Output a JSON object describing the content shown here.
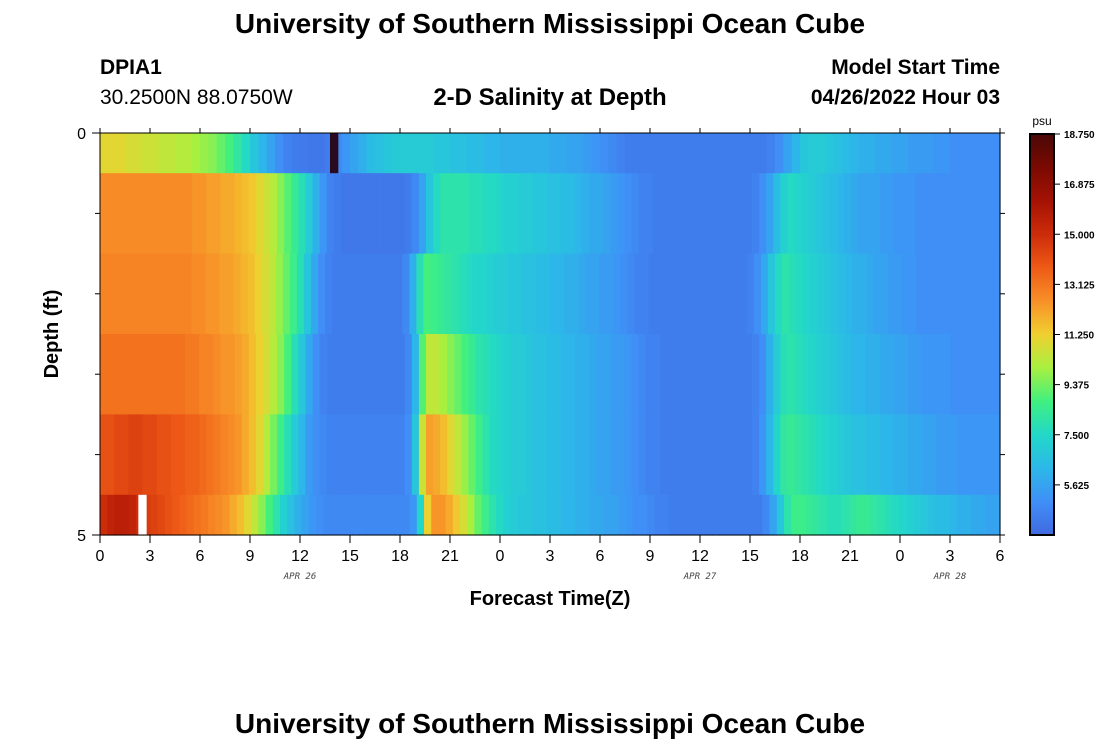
{
  "header": {
    "title": "University of Southern Mississippi Ocean Cube",
    "station_id": "DPIA1",
    "station_coords": "30.2500N  88.0750W",
    "subtitle": "2-D Salinity at Depth",
    "model_label": "Model Start Time",
    "model_time": "04/26/2022 Hour 03"
  },
  "footer": {
    "title": "University of Southern Mississippi Ocean Cube"
  },
  "chart_data": {
    "type": "heatmap",
    "title": "2-D Salinity at Depth",
    "xlabel": "Forecast Time(Z)",
    "ylabel": "Depth (ft)",
    "x_range_hours": [
      0,
      54
    ],
    "y_range_ft": [
      0,
      5
    ],
    "y_ticks": [
      "0",
      "5"
    ],
    "x_tick_labels": [
      "0",
      "3",
      "6",
      "9",
      "12",
      "15",
      "18",
      "21",
      "0",
      "3",
      "6",
      "9",
      "12",
      "15",
      "18",
      "21",
      "0",
      "3",
      "6"
    ],
    "date_labels": [
      {
        "label": "APR 26",
        "hour": 12
      },
      {
        "label": "APR 27",
        "hour": 36
      },
      {
        "label": "APR 28",
        "hour": 51
      }
    ],
    "colorbar": {
      "unit": "psu",
      "ticks": [
        "18.750",
        "16.875",
        "15.000",
        "13.125",
        "11.250",
        "9.375",
        "7.500",
        "5.625"
      ],
      "min": 3.75,
      "max": 18.75,
      "colors": [
        "#4169e1",
        "#3f8ff7",
        "#2cb8e8",
        "#22d8c8",
        "#40f080",
        "#a8f040",
        "#f0d030",
        "#f89028",
        "#ee5a16",
        "#cc2c0a",
        "#a41204",
        "#7a0a02",
        "#4a0806"
      ]
    },
    "layers": [
      {
        "depth_top": 0,
        "depth_bottom": 0.5,
        "values": [
          11.0,
          11.0,
          11.0,
          10.8,
          10.8,
          10.6,
          10.6,
          10.4,
          10.4,
          10.2,
          10.2,
          10.0,
          9.8,
          9.6,
          9.2,
          8.8,
          8.2,
          7.6,
          6.8,
          6.2,
          5.6,
          5.0,
          4.6,
          4.4,
          4.3,
          4.2,
          4.2,
          4.4,
          4.8,
          5.2,
          5.6,
          6.0,
          6.4,
          6.6,
          6.8,
          6.9,
          7.0,
          7.0,
          7.0,
          7.0,
          6.8,
          6.8,
          6.6,
          6.6,
          6.4,
          6.4,
          6.2,
          6.2,
          6.0,
          6.0,
          6.0,
          6.0,
          6.0,
          6.0,
          5.8,
          5.8,
          5.6,
          5.6,
          5.4,
          5.2,
          5.0,
          4.8,
          4.6,
          4.4,
          4.4,
          4.4,
          4.4,
          4.4,
          4.4,
          4.4,
          4.4,
          4.4,
          4.4,
          4.4,
          4.4,
          4.4,
          4.4,
          4.4,
          4.4,
          4.4,
          4.6,
          5.0,
          5.6,
          6.2,
          6.8,
          7.0,
          7.0,
          6.8,
          6.6,
          6.4,
          6.2,
          6.0,
          6.0,
          5.8,
          5.8,
          5.6,
          5.6,
          5.4,
          5.4,
          5.4,
          5.2,
          5.2,
          5.0,
          5.0,
          5.0,
          5.0,
          5.0,
          5.0
        ]
      },
      {
        "depth_top": 0.5,
        "depth_bottom": 1.5,
        "values": [
          12.6,
          12.6,
          12.6,
          12.6,
          12.6,
          12.6,
          12.6,
          12.6,
          12.6,
          12.6,
          12.6,
          12.6,
          12.6,
          12.4,
          12.4,
          12.2,
          12.2,
          12.0,
          12.0,
          11.8,
          11.6,
          11.4,
          11.0,
          10.6,
          10.2,
          9.6,
          9.0,
          8.4,
          7.8,
          7.0,
          6.0,
          5.2,
          4.6,
          4.4,
          4.2,
          4.2,
          4.2,
          4.2,
          4.2,
          4.2,
          4.2,
          4.2,
          4.2,
          4.4,
          4.8,
          5.6,
          6.8,
          7.6,
          8.0,
          8.0,
          8.0,
          8.0,
          7.8,
          7.8,
          7.6,
          7.6,
          7.4,
          7.2,
          7.2,
          7.0,
          7.0,
          6.8,
          6.8,
          6.6,
          6.6,
          6.4,
          6.4,
          6.2,
          6.0,
          5.8,
          5.8,
          5.6,
          5.4,
          5.2,
          5.0,
          4.8,
          4.6,
          4.6,
          4.4,
          4.4,
          4.4,
          4.4,
          4.4,
          4.4,
          4.4,
          4.4,
          4.4,
          4.4,
          4.4,
          4.4,
          4.4,
          4.4,
          4.6,
          5.0,
          5.6,
          6.4,
          7.2,
          7.6,
          7.4,
          7.2,
          7.0,
          6.8,
          6.6,
          6.4,
          6.2,
          6.0,
          5.8,
          5.6,
          5.6,
          5.6,
          5.4,
          5.4,
          5.2,
          5.2,
          5.2,
          5.0,
          5.0,
          5.0,
          5.0,
          5.0,
          5.0,
          5.0,
          5.0,
          5.0,
          5.0,
          5.0,
          5.0
        ]
      },
      {
        "depth_top": 1.5,
        "depth_bottom": 2.5,
        "values": [
          12.8,
          12.8,
          12.8,
          12.8,
          12.8,
          12.8,
          12.8,
          12.8,
          12.8,
          12.8,
          12.8,
          12.8,
          12.8,
          12.6,
          12.6,
          12.4,
          12.4,
          12.2,
          12.2,
          12.0,
          11.8,
          11.6,
          11.2,
          10.8,
          10.4,
          9.8,
          9.2,
          8.6,
          7.8,
          6.8,
          5.8,
          5.0,
          4.6,
          4.4,
          4.4,
          4.4,
          4.4,
          4.4,
          4.4,
          4.4,
          4.4,
          4.4,
          4.4,
          4.8,
          6.0,
          7.8,
          8.8,
          8.6,
          8.4,
          8.2,
          8.0,
          7.8,
          7.6,
          7.4,
          7.4,
          7.2,
          7.0,
          7.0,
          6.8,
          6.8,
          6.6,
          6.6,
          6.4,
          6.4,
          6.2,
          6.2,
          6.0,
          6.0,
          5.8,
          5.6,
          5.6,
          5.4,
          5.4,
          5.2,
          5.0,
          4.8,
          4.6,
          4.6,
          4.4,
          4.4,
          4.4,
          4.4,
          4.4,
          4.4,
          4.4,
          4.4,
          4.4,
          4.4,
          4.4,
          4.4,
          4.4,
          4.4,
          4.6,
          5.0,
          5.8,
          6.8,
          7.6,
          8.0,
          7.8,
          7.6,
          7.4,
          7.2,
          7.0,
          6.8,
          6.6,
          6.4,
          6.2,
          6.0,
          6.0,
          5.8,
          5.6,
          5.6,
          5.4,
          5.4,
          5.2,
          5.2,
          5.0,
          5.0,
          5.0,
          5.0,
          5.0,
          5.0,
          5.0,
          5.0,
          5.0,
          5.0,
          5.0,
          5.0
        ]
      },
      {
        "depth_top": 2.5,
        "depth_bottom": 3.5,
        "values": [
          13.2,
          13.2,
          13.2,
          13.2,
          13.2,
          13.2,
          13.2,
          13.2,
          13.2,
          13.2,
          13.2,
          13.2,
          13.0,
          13.0,
          12.8,
          12.8,
          12.6,
          12.4,
          12.4,
          12.2,
          12.0,
          11.6,
          11.2,
          10.8,
          10.2,
          9.6,
          8.8,
          7.8,
          6.8,
          5.8,
          5.0,
          4.6,
          4.4,
          4.4,
          4.4,
          4.4,
          4.4,
          4.4,
          4.4,
          4.4,
          4.4,
          4.4,
          4.4,
          4.8,
          6.2,
          9.0,
          10.4,
          10.4,
          10.0,
          9.6,
          9.2,
          8.8,
          8.4,
          8.0,
          7.8,
          7.6,
          7.4,
          7.2,
          7.0,
          7.0,
          6.8,
          6.6,
          6.6,
          6.4,
          6.4,
          6.2,
          6.2,
          6.0,
          6.0,
          5.8,
          5.6,
          5.6,
          5.4,
          5.4,
          5.2,
          5.0,
          4.8,
          4.6,
          4.6,
          4.4,
          4.4,
          4.4,
          4.4,
          4.4,
          4.4,
          4.4,
          4.4,
          4.4,
          4.4,
          4.4,
          4.4,
          4.4,
          4.6,
          5.0,
          6.0,
          7.0,
          7.8,
          8.0,
          7.8,
          7.6,
          7.4,
          7.2,
          7.0,
          6.8,
          6.6,
          6.4,
          6.2,
          6.2,
          6.0,
          6.0,
          5.8,
          5.8,
          5.6,
          5.6,
          5.4,
          5.4,
          5.2,
          5.2,
          5.2,
          5.2,
          5.0,
          5.0,
          5.0,
          5.0,
          5.0,
          5.0,
          5.0
        ]
      },
      {
        "depth_top": 3.5,
        "depth_bottom": 4.5,
        "values": [
          14.0,
          14.0,
          14.2,
          14.2,
          14.4,
          14.4,
          14.2,
          14.2,
          14.0,
          14.0,
          13.8,
          13.8,
          13.6,
          13.6,
          13.4,
          13.2,
          13.0,
          12.8,
          12.6,
          12.4,
          12.0,
          11.6,
          11.0,
          10.2,
          9.4,
          8.6,
          7.8,
          7.0,
          6.2,
          5.4,
          5.0,
          4.8,
          4.6,
          4.6,
          4.6,
          4.6,
          4.6,
          4.6,
          4.6,
          4.6,
          4.6,
          4.6,
          4.6,
          5.0,
          6.8,
          10.6,
          12.2,
          12.0,
          11.6,
          11.0,
          10.4,
          9.8,
          9.2,
          8.6,
          8.0,
          7.6,
          7.4,
          7.2,
          7.0,
          7.0,
          6.8,
          6.6,
          6.6,
          6.4,
          6.4,
          6.2,
          6.2,
          6.0,
          6.0,
          5.8,
          5.6,
          5.6,
          5.4,
          5.4,
          5.2,
          5.0,
          4.8,
          4.6,
          4.6,
          4.4,
          4.4,
          4.4,
          4.4,
          4.4,
          4.4,
          4.4,
          4.4,
          4.4,
          4.4,
          4.4,
          4.4,
          4.4,
          4.6,
          5.2,
          6.2,
          7.4,
          8.2,
          8.4,
          8.2,
          8.0,
          7.8,
          7.6,
          7.4,
          7.2,
          7.0,
          6.8,
          6.6,
          6.6,
          6.4,
          6.4,
          6.2,
          6.2,
          6.0,
          6.0,
          5.8,
          5.8,
          5.6,
          5.6,
          5.4,
          5.4,
          5.4,
          5.2,
          5.2,
          5.2,
          5.2,
          5.2,
          5.2
        ]
      },
      {
        "depth_top": 4.5,
        "depth_bottom": 5.0,
        "values": [
          15.0,
          15.4,
          15.6,
          15.6,
          15.4,
          15.0,
          14.6,
          14.4,
          14.2,
          14.0,
          13.8,
          13.6,
          13.4,
          13.2,
          13.0,
          12.8,
          12.6,
          12.4,
          12.0,
          11.6,
          11.0,
          10.4,
          9.6,
          8.8,
          8.0,
          7.2,
          6.6,
          6.0,
          5.6,
          5.2,
          5.0,
          4.8,
          4.8,
          4.8,
          4.8,
          4.8,
          4.8,
          4.8,
          4.8,
          4.8,
          4.8,
          4.8,
          4.8,
          5.2,
          7.4,
          11.2,
          12.4,
          12.4,
          12.0,
          11.4,
          10.8,
          10.0,
          9.2,
          8.6,
          8.0,
          7.6,
          7.2,
          7.0,
          6.8,
          6.8,
          6.6,
          6.6,
          6.4,
          6.4,
          6.2,
          6.2,
          6.0,
          6.0,
          5.8,
          5.8,
          5.6,
          5.6,
          5.4,
          5.2,
          5.0,
          5.0,
          4.8,
          4.6,
          4.6,
          4.4,
          4.4,
          4.4,
          4.4,
          4.4,
          4.4,
          4.4,
          4.4,
          4.4,
          4.4,
          4.4,
          4.4,
          4.4,
          4.8,
          5.6,
          6.8,
          8.0,
          8.6,
          8.6,
          8.4,
          8.2,
          8.0,
          7.8,
          7.8,
          8.0,
          8.2,
          8.4,
          8.4,
          8.2,
          8.0,
          7.8,
          7.6,
          7.4,
          7.2,
          7.0,
          6.8,
          6.6,
          6.4,
          6.4,
          6.2,
          6.0,
          6.0,
          5.8,
          5.8,
          5.6,
          5.6
        ]
      }
    ],
    "anomalies": [
      {
        "hour_start": 13.8,
        "hour_end": 14.3,
        "depth_top": 0,
        "depth_bottom": 0.5,
        "value": 21.0
      },
      {
        "hour_start": 2.3,
        "hour_end": 2.8,
        "depth_top": 4.5,
        "depth_bottom": 5.0,
        "value": null
      }
    ]
  }
}
